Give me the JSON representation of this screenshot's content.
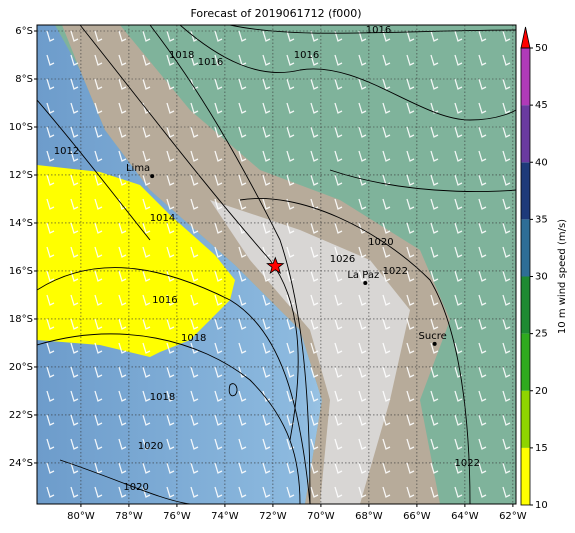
{
  "title": "Forecast of 2019061712 (f000)",
  "map": {
    "lonlim": [
      -81.83,
      -61.87
    ],
    "latlim": [
      -25.71,
      -5.75
    ],
    "grid": true,
    "lonticks": [
      {
        "value": -80,
        "label": "80°W"
      },
      {
        "value": -78,
        "label": "78°W"
      },
      {
        "value": -76,
        "label": "76°W"
      },
      {
        "value": -74,
        "label": "74°W"
      },
      {
        "value": -72,
        "label": "72°W"
      },
      {
        "value": -70,
        "label": "70°W"
      },
      {
        "value": -68,
        "label": "68°W"
      },
      {
        "value": -66,
        "label": "66°W"
      },
      {
        "value": -64,
        "label": "64°W"
      },
      {
        "value": -62,
        "label": "62°W"
      }
    ],
    "latticks": [
      {
        "value": -6,
        "label": "6°S"
      },
      {
        "value": -8,
        "label": "8°S"
      },
      {
        "value": -10,
        "label": "10°S"
      },
      {
        "value": -12,
        "label": "12°S"
      },
      {
        "value": -14,
        "label": "14°S"
      },
      {
        "value": -16,
        "label": "16°S"
      },
      {
        "value": -18,
        "label": "18°S"
      },
      {
        "value": -20,
        "label": "20°S"
      },
      {
        "value": -22,
        "label": "22°S"
      },
      {
        "value": -24,
        "label": "24°S"
      }
    ],
    "cities": [
      {
        "name": "Lima",
        "lon": -77.03,
        "lat": -12.05
      },
      {
        "name": "La Paz",
        "lon": -68.15,
        "lat": -16.5
      },
      {
        "name": "Sucre",
        "lon": -65.26,
        "lat": -19.04
      }
    ],
    "epicenter": {
      "lon": -71.9,
      "lat": -15.8,
      "color": "#ff0000"
    },
    "contour_labels": [
      {
        "text": "1016",
        "lon": -67.6,
        "lat": -5.96
      },
      {
        "text": "1018",
        "lon": -75.8,
        "lat": -7.0
      },
      {
        "text": "1016",
        "lon": -74.6,
        "lat": -7.3
      },
      {
        "text": "1016",
        "lon": -70.6,
        "lat": -7.0
      },
      {
        "text": "1012",
        "lon": -80.6,
        "lat": -11.0
      },
      {
        "text": "1014",
        "lon": -76.6,
        "lat": -13.8
      },
      {
        "text": "1016",
        "lon": -76.5,
        "lat": -17.2
      },
      {
        "text": "1018",
        "lon": -75.3,
        "lat": -18.8
      },
      {
        "text": "1018",
        "lon": -76.6,
        "lat": -21.25
      },
      {
        "text": "1020",
        "lon": -77.1,
        "lat": -23.3
      },
      {
        "text": "1020",
        "lon": -77.7,
        "lat": -25.0
      },
      {
        "text": "1020",
        "lon": -67.5,
        "lat": -14.8
      },
      {
        "text": "1022",
        "lon": -66.9,
        "lat": -16.0
      },
      {
        "text": "1026",
        "lon": -69.1,
        "lat": -15.5
      },
      {
        "text": "1022",
        "lon": -63.9,
        "lat": -24.0
      }
    ]
  },
  "colorbar": {
    "label": "10 m wind speed (m/s)",
    "ticks": [
      10,
      15,
      20,
      25,
      30,
      35,
      40,
      45,
      50
    ],
    "colors": [
      "#ffff00",
      "#8fd400",
      "#2faa1e",
      "#1e8a32",
      "#2e6e96",
      "#1e3a7a",
      "#6a3aa0",
      "#b03ab8"
    ],
    "extend_color": "#ff0000"
  }
}
